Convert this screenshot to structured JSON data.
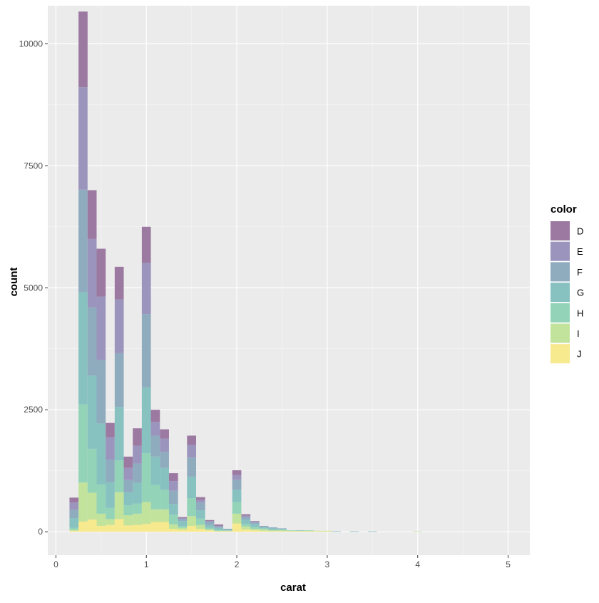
{
  "chart_data": {
    "type": "bar",
    "stacked": true,
    "xlabel": "carat",
    "ylabel": "count",
    "xlim": [
      -0.09,
      5.24
    ],
    "ylim": [
      -480,
      10780
    ],
    "x_ticks": [
      0,
      1,
      2,
      3,
      4,
      5
    ],
    "y_ticks": [
      0,
      2500,
      5000,
      7500,
      10000
    ],
    "x_tick_labels": [
      "0",
      "1",
      "2",
      "3",
      "4",
      "5"
    ],
    "y_tick_labels": [
      "0",
      "2500",
      "5000",
      "7500",
      "10000"
    ],
    "grid": true,
    "legend": {
      "title": "color",
      "position": "right"
    },
    "bin_width": 0.1,
    "bins": [
      0.2,
      0.3,
      0.4,
      0.5,
      0.6,
      0.7,
      0.8,
      0.9,
      1.0,
      1.1,
      1.2,
      1.3,
      1.4,
      1.5,
      1.6,
      1.7,
      1.8,
      1.9,
      2.0,
      2.1,
      2.2,
      2.3,
      2.4,
      2.5,
      2.6,
      2.7,
      2.8,
      2.9,
      3.0,
      3.1,
      3.2,
      3.3,
      3.4,
      3.5,
      3.6,
      3.7,
      3.8,
      3.9,
      4.0,
      4.1,
      4.2,
      4.3,
      4.4,
      4.5,
      4.6,
      4.7,
      4.8,
      4.9,
      5.0
    ],
    "series": [
      {
        "name": "D",
        "color": "#9c79a1",
        "values": [
          100,
          1550,
          1000,
          980,
          290,
          670,
          230,
          360,
          740,
          250,
          190,
          160,
          20,
          190,
          60,
          20,
          30,
          0,
          100,
          30,
          10,
          0,
          0,
          0,
          0,
          0,
          0,
          0,
          0,
          0,
          0,
          0,
          0,
          0,
          0,
          0,
          0,
          0,
          0,
          0,
          0,
          0,
          0,
          0,
          0,
          0,
          0,
          0,
          0
        ]
      },
      {
        "name": "E",
        "color": "#9b95bd",
        "values": [
          150,
          2100,
          1400,
          1300,
          460,
          1100,
          250,
          360,
          1050,
          280,
          270,
          200,
          20,
          260,
          50,
          20,
          10,
          0,
          100,
          30,
          20,
          10,
          0,
          0,
          0,
          0,
          0,
          0,
          0,
          0,
          0,
          0,
          0,
          0,
          0,
          0,
          0,
          0,
          0,
          0,
          0,
          0,
          0,
          0,
          0,
          0,
          0,
          0,
          0
        ]
      },
      {
        "name": "F",
        "color": "#8fabbe",
        "values": [
          170,
          2100,
          1400,
          1300,
          460,
          1100,
          250,
          400,
          1500,
          430,
          330,
          270,
          40,
          390,
          160,
          60,
          30,
          20,
          200,
          50,
          30,
          10,
          20,
          10,
          0,
          0,
          0,
          0,
          0,
          0,
          0,
          0,
          0,
          0,
          0,
          0,
          0,
          0,
          0,
          0,
          0,
          0,
          0,
          0,
          0,
          0,
          0,
          0,
          0
        ]
      },
      {
        "name": "G",
        "color": "#87c1c0",
        "values": [
          200,
          2300,
          1500,
          1250,
          530,
          1100,
          270,
          420,
          1350,
          580,
          450,
          220,
          100,
          440,
          170,
          60,
          40,
          10,
          250,
          90,
          60,
          30,
          30,
          20,
          0,
          10,
          0,
          0,
          0,
          10,
          0,
          10,
          0,
          10,
          0,
          0,
          0,
          0,
          0,
          0,
          0,
          0,
          0,
          0,
          0,
          0,
          0,
          0,
          0
        ]
      },
      {
        "name": "H",
        "color": "#93d3b8",
        "values": [
          40,
          1600,
          900,
          600,
          230,
          650,
          200,
          210,
          1000,
          500,
          400,
          200,
          40,
          370,
          130,
          30,
          20,
          10,
          240,
          50,
          40,
          20,
          10,
          10,
          10,
          0,
          10,
          0,
          0,
          0,
          0,
          0,
          0,
          0,
          0,
          0,
          0,
          0,
          0,
          0,
          0,
          0,
          0,
          0,
          0,
          0,
          0,
          0,
          0
        ]
      },
      {
        "name": "I",
        "color": "#c2e39c",
        "values": [
          20,
          800,
          550,
          250,
          120,
          550,
          210,
          230,
          450,
          260,
          260,
          90,
          40,
          200,
          80,
          20,
          10,
          10,
          200,
          60,
          30,
          30,
          20,
          20,
          10,
          10,
          10,
          10,
          10,
          0,
          0,
          0,
          0,
          0,
          0,
          0,
          0,
          0,
          10,
          0,
          0,
          0,
          0,
          0,
          0,
          0,
          0,
          0,
          0
        ]
      },
      {
        "name": "J",
        "color": "#f7e98d",
        "values": [
          20,
          210,
          250,
          120,
          140,
          260,
          130,
          140,
          160,
          200,
          200,
          60,
          40,
          120,
          60,
          30,
          10,
          10,
          170,
          50,
          30,
          20,
          10,
          10,
          10,
          10,
          10,
          10,
          10,
          0,
          0,
          0,
          0,
          0,
          0,
          0,
          0,
          0,
          0,
          0,
          0,
          0,
          0,
          0,
          0,
          0,
          0,
          0,
          0
        ]
      }
    ]
  }
}
